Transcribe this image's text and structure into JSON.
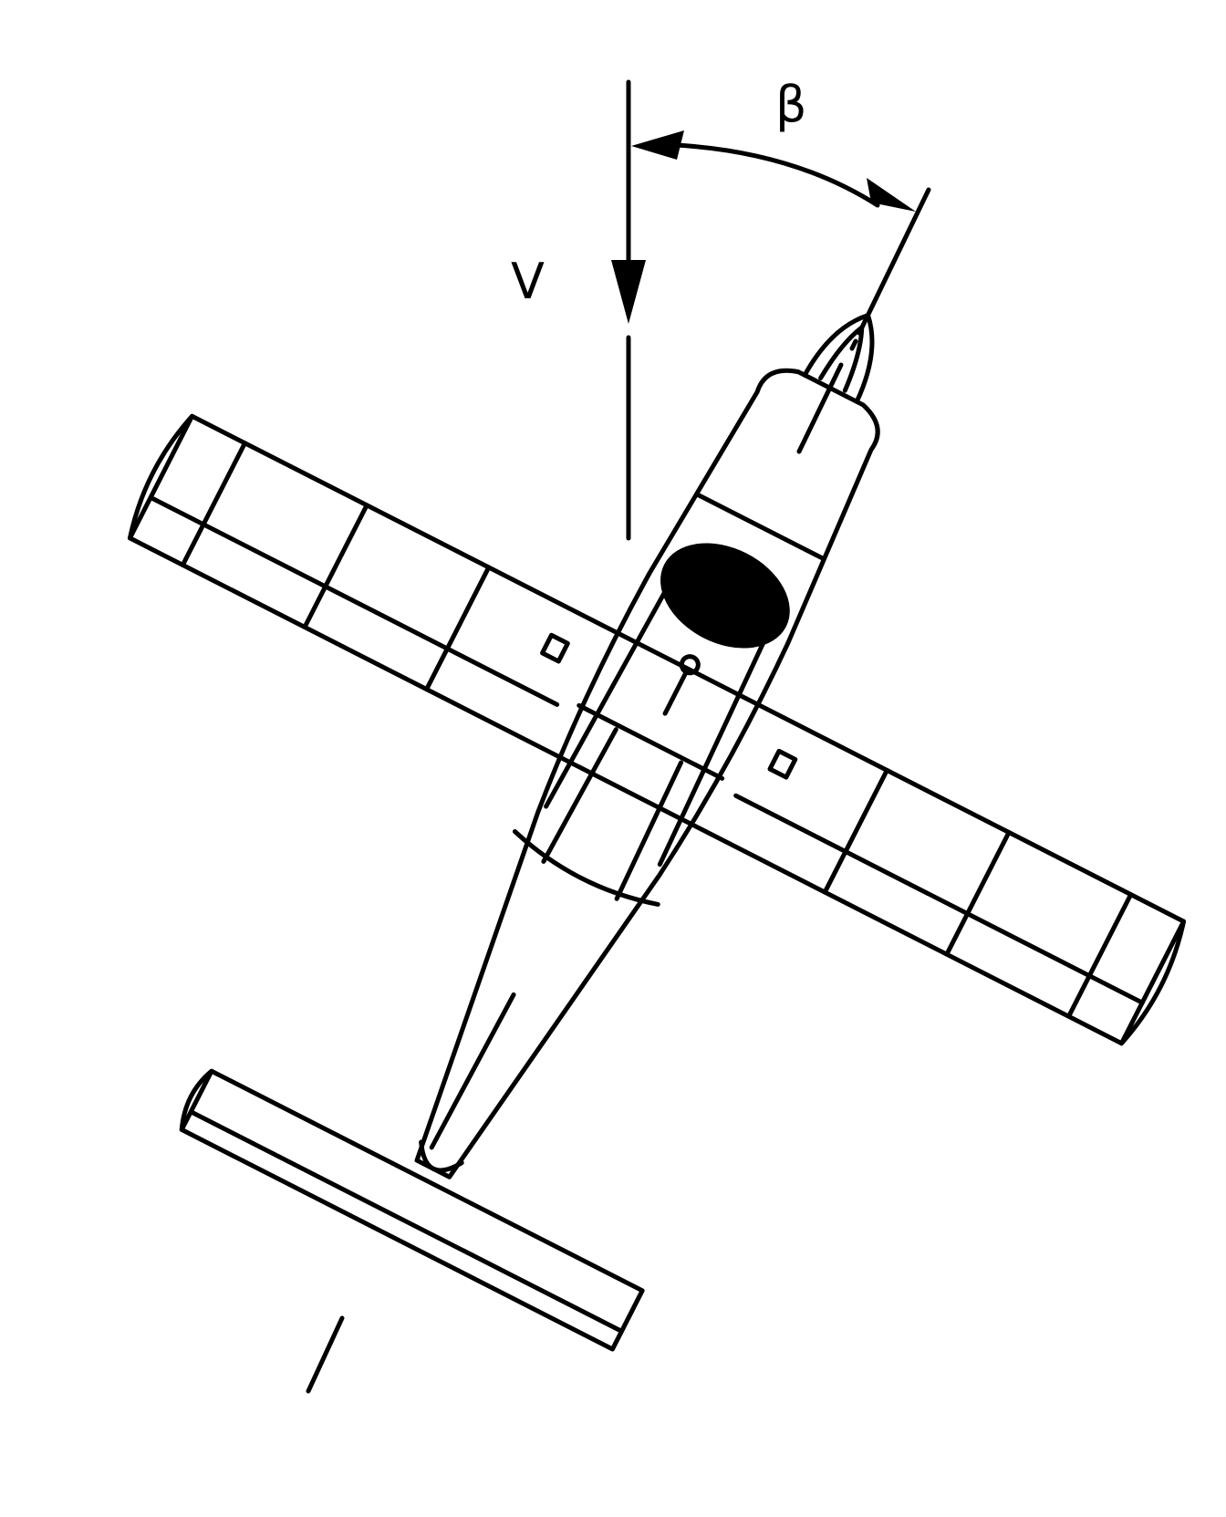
{
  "labels": {
    "beta": "β",
    "velocity": "V"
  },
  "colors": {
    "ink": "#000000",
    "background": "#ffffff"
  }
}
